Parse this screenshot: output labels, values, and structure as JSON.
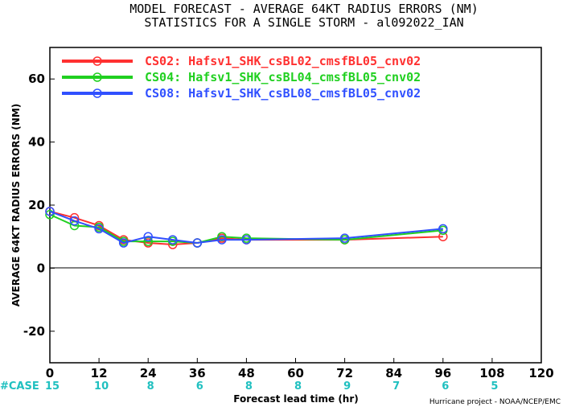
{
  "chart_data": {
    "type": "line",
    "title": "MODEL FORECAST - AVERAGE 64KT RADIUS ERRORS (NM)",
    "subtitle": "STATISTICS FOR A SINGLE STORM - al092022_IAN",
    "xlabel": "Forecast lead time (hr)",
    "ylabel": "AVERAGE 64KT RADIUS ERRORS (NM)",
    "xlim": [
      0,
      120
    ],
    "ylim": [
      -30,
      70
    ],
    "xticks": [
      0,
      12,
      24,
      36,
      48,
      60,
      72,
      84,
      96,
      108,
      120
    ],
    "yticks": [
      -20,
      0,
      20,
      40,
      60
    ],
    "legend_position": "top-left",
    "series": [
      {
        "name": "CS02: Hafsv1_SHK_csBL02_cmsfBL05_cnv02",
        "color": "#ff3030",
        "x": [
          0,
          6,
          12,
          18,
          24,
          30,
          36,
          42,
          48,
          72,
          96
        ],
        "y": [
          18,
          16,
          13.5,
          9,
          8,
          7.5,
          8,
          9.5,
          9,
          9,
          10
        ]
      },
      {
        "name": "CS04: Hafsv1_SHK_csBL04_cmsfBL05_cnv02",
        "color": "#20d020",
        "x": [
          0,
          6,
          12,
          18,
          24,
          30,
          36,
          42,
          48,
          72,
          96
        ],
        "y": [
          17,
          13.5,
          13,
          8.5,
          8.5,
          8.5,
          8,
          10,
          9.5,
          9,
          12
        ]
      },
      {
        "name": "CS08: Hafsv1_SHK_csBL08_cmsfBL05_cnv02",
        "color": "#3050ff",
        "x": [
          0,
          6,
          12,
          18,
          24,
          30,
          36,
          42,
          48,
          72,
          96
        ],
        "y": [
          18,
          15,
          12.5,
          8,
          10,
          9,
          8,
          9,
          9,
          9.5,
          12.5
        ]
      }
    ],
    "cases": {
      "label": "#CASE",
      "x": [
        0,
        12,
        24,
        36,
        48,
        60,
        72,
        84,
        96,
        108
      ],
      "values": [
        "15",
        "10",
        "8",
        "6",
        "8",
        "8",
        "9",
        "7",
        "6",
        "5"
      ]
    }
  },
  "credit": "Hurricane project - NOAA/NCEP/EMC",
  "colors": {
    "zero_line": "#000000",
    "case_text": "#20c0c0"
  }
}
